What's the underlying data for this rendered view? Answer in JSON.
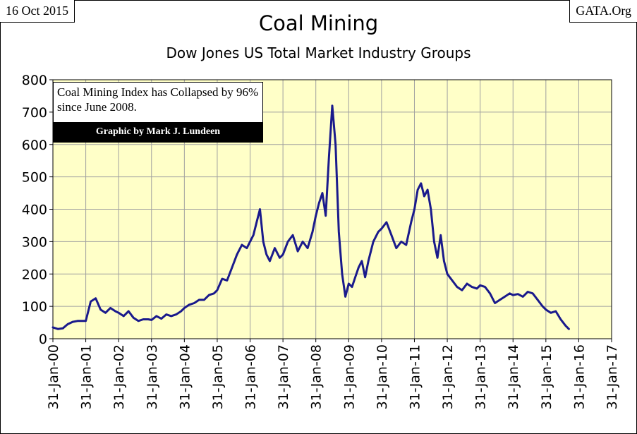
{
  "header": {
    "date": "16 Oct 2015",
    "source": "GATA.Org"
  },
  "annotation": {
    "text": "Coal Mining Index has Collapsed by 96% since June 2008.",
    "credit": "Graphic by Mark J. Lundeen"
  },
  "colors": {
    "plot_bg": "#FFFFC8",
    "line": "#1A1A8C",
    "grid": "#A0A0A0"
  },
  "chart_data": {
    "type": "line",
    "title": "Coal Mining",
    "subtitle": "Dow Jones US Total Market Industry Groups",
    "xlabel": "",
    "ylabel": "",
    "ylim": [
      0,
      800
    ],
    "yticks": [
      0,
      100,
      200,
      300,
      400,
      500,
      600,
      700,
      800
    ],
    "xlim": [
      2000,
      2017
    ],
    "xticks": [
      {
        "value": 2000,
        "label": "31-Jan-00"
      },
      {
        "value": 2001,
        "label": "31-Jan-01"
      },
      {
        "value": 2002,
        "label": "31-Jan-02"
      },
      {
        "value": 2003,
        "label": "31-Jan-03"
      },
      {
        "value": 2004,
        "label": "31-Jan-04"
      },
      {
        "value": 2005,
        "label": "31-Jan-05"
      },
      {
        "value": 2006,
        "label": "31-Jan-06"
      },
      {
        "value": 2007,
        "label": "31-Jan-07"
      },
      {
        "value": 2008,
        "label": "31-Jan-08"
      },
      {
        "value": 2009,
        "label": "31-Jan-09"
      },
      {
        "value": 2010,
        "label": "31-Jan-10"
      },
      {
        "value": 2011,
        "label": "31-Jan-11"
      },
      {
        "value": 2012,
        "label": "31-Jan-12"
      },
      {
        "value": 2013,
        "label": "31-Jan-13"
      },
      {
        "value": 2014,
        "label": "31-Jan-14"
      },
      {
        "value": 2015,
        "label": "31-Jan-15"
      },
      {
        "value": 2016,
        "label": "31-Jan-16"
      },
      {
        "value": 2017,
        "label": "31-Jan-17"
      }
    ],
    "grid": true,
    "series": [
      {
        "name": "Coal Mining Index",
        "x": [
          2000.0,
          2000.15,
          2000.3,
          2000.45,
          2000.6,
          2000.75,
          2000.9,
          2001.0,
          2001.15,
          2001.3,
          2001.45,
          2001.6,
          2001.75,
          2001.9,
          2002.0,
          2002.15,
          2002.3,
          2002.45,
          2002.6,
          2002.75,
          2002.9,
          2003.0,
          2003.15,
          2003.3,
          2003.45,
          2003.6,
          2003.75,
          2003.9,
          2004.0,
          2004.15,
          2004.3,
          2004.45,
          2004.6,
          2004.75,
          2004.9,
          2005.0,
          2005.15,
          2005.3,
          2005.45,
          2005.6,
          2005.75,
          2005.9,
          2006.0,
          2006.1,
          2006.2,
          2006.3,
          2006.4,
          2006.5,
          2006.6,
          2006.75,
          2006.9,
          2007.0,
          2007.15,
          2007.3,
          2007.45,
          2007.6,
          2007.75,
          2007.9,
          2008.0,
          2008.1,
          2008.2,
          2008.3,
          2008.4,
          2008.5,
          2008.6,
          2008.7,
          2008.8,
          2008.9,
          2009.0,
          2009.1,
          2009.2,
          2009.3,
          2009.4,
          2009.5,
          2009.6,
          2009.75,
          2009.9,
          2010.0,
          2010.15,
          2010.3,
          2010.45,
          2010.6,
          2010.75,
          2010.9,
          2011.0,
          2011.1,
          2011.2,
          2011.3,
          2011.4,
          2011.5,
          2011.6,
          2011.7,
          2011.8,
          2011.9,
          2012.0,
          2012.15,
          2012.3,
          2012.45,
          2012.6,
          2012.75,
          2012.9,
          2013.0,
          2013.15,
          2013.3,
          2013.45,
          2013.6,
          2013.75,
          2013.9,
          2014.0,
          2014.15,
          2014.3,
          2014.45,
          2014.6,
          2014.75,
          2014.9,
          2015.0,
          2015.15,
          2015.3,
          2015.45,
          2015.6,
          2015.7
        ],
        "y": [
          35,
          30,
          32,
          45,
          52,
          55,
          55,
          55,
          115,
          125,
          90,
          80,
          95,
          85,
          80,
          70,
          85,
          65,
          55,
          60,
          60,
          58,
          70,
          62,
          75,
          70,
          75,
          85,
          95,
          105,
          110,
          120,
          120,
          135,
          140,
          150,
          185,
          180,
          220,
          260,
          290,
          280,
          300,
          320,
          360,
          400,
          300,
          260,
          240,
          280,
          250,
          260,
          300,
          320,
          270,
          300,
          280,
          330,
          380,
          420,
          450,
          380,
          560,
          720,
          600,
          330,
          200,
          130,
          170,
          160,
          190,
          220,
          240,
          190,
          240,
          300,
          330,
          340,
          360,
          320,
          280,
          300,
          290,
          360,
          400,
          460,
          480,
          440,
          460,
          400,
          300,
          250,
          320,
          240,
          200,
          180,
          160,
          150,
          170,
          160,
          155,
          165,
          160,
          140,
          110,
          120,
          130,
          140,
          135,
          138,
          130,
          145,
          140,
          120,
          100,
          90,
          80,
          85,
          60,
          40,
          30
        ]
      }
    ]
  }
}
